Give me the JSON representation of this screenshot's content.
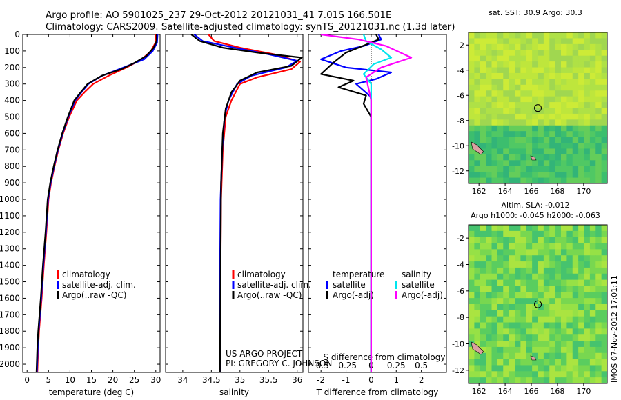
{
  "header": {
    "line1": "Argo profile: AO 5901025_237 29-Oct-2012 20121031_41 7.01S 166.501E",
    "line2": "Climatology: CARS2009. Satellite-adjusted climatology: synTS_20121031.nc (1.3d later)"
  },
  "credits": {
    "line1": "US ARGO PROJECT",
    "line2": "PI: GREGORY C. JOHNSON"
  },
  "side_label": "IMOS 07-Nov-2012 17:01:11",
  "colors": {
    "climatology": "#ff0000",
    "satellite": "#0000ff",
    "argo": "#000000",
    "sat_salinity": "#00e5ee",
    "argo_salinity": "#ff00ff"
  },
  "depth_ticks": [
    "0",
    "100",
    "200",
    "300",
    "400",
    "500",
    "600",
    "700",
    "800",
    "900",
    "1000",
    "1100",
    "1200",
    "1300",
    "1400",
    "1500",
    "1600",
    "1700",
    "1800",
    "1900",
    "2000"
  ],
  "legend_profiles": [
    "climatology",
    "satellite-adj. clim.",
    "Argo(..raw -QC)"
  ],
  "legend_diff": {
    "temperature_head": "temperature",
    "salinity_head": "salinity",
    "temperature_items": [
      "satellite",
      "Argo(-adj)"
    ],
    "salinity_items": [
      "satellite",
      "Argo(-adj)"
    ]
  },
  "chart_data": [
    {
      "type": "line",
      "xlabel": "temperature (deg C)",
      "ylabel": "",
      "xlim": [
        -1,
        31
      ],
      "ylim": [
        2050,
        0
      ],
      "x_ticks": [
        "0",
        "5",
        "10",
        "15",
        "20",
        "25",
        "30"
      ],
      "series": [
        {
          "name": "climatology",
          "color": "#ff0000",
          "points": [
            [
              30.0,
              0
            ],
            [
              29.9,
              50
            ],
            [
              28.9,
              100
            ],
            [
              26.7,
              150
            ],
            [
              23.2,
              200
            ],
            [
              19.0,
              250
            ],
            [
              15.4,
              300
            ],
            [
              13.4,
              350
            ],
            [
              11.6,
              400
            ],
            [
              9.8,
              500
            ],
            [
              8.4,
              600
            ],
            [
              7.3,
              700
            ],
            [
              6.4,
              800
            ],
            [
              5.6,
              900
            ],
            [
              5.0,
              1000
            ],
            [
              4.5,
              1200
            ],
            [
              3.9,
              1400
            ],
            [
              3.4,
              1600
            ],
            [
              2.8,
              1800
            ],
            [
              2.6,
              1900
            ],
            [
              2.4,
              2050
            ]
          ]
        },
        {
          "name": "satellite-adj. clim.",
          "color": "#0000ff",
          "points": [
            [
              30.4,
              0
            ],
            [
              30.3,
              50
            ],
            [
              29.3,
              100
            ],
            [
              27.3,
              150
            ],
            [
              22.5,
              200
            ],
            [
              17.5,
              250
            ],
            [
              14.3,
              300
            ],
            [
              12.7,
              350
            ],
            [
              11.2,
              400
            ],
            [
              9.6,
              500
            ],
            [
              8.3,
              600
            ],
            [
              7.2,
              700
            ],
            [
              6.3,
              800
            ],
            [
              5.5,
              900
            ],
            [
              4.9,
              1000
            ],
            [
              4.4,
              1200
            ],
            [
              3.8,
              1400
            ],
            [
              3.3,
              1600
            ],
            [
              2.7,
              1800
            ],
            [
              2.5,
              1900
            ],
            [
              2.3,
              2050
            ]
          ]
        },
        {
          "name": "Argo(..raw -QC)",
          "color": "#000000",
          "points": [
            [
              30.2,
              0
            ],
            [
              30.2,
              40
            ],
            [
              29.5,
              80
            ],
            [
              27.8,
              130
            ],
            [
              25.2,
              170
            ],
            [
              22.0,
              210
            ],
            [
              17.4,
              250
            ],
            [
              14.1,
              300
            ],
            [
              12.5,
              350
            ],
            [
              11.0,
              400
            ],
            [
              9.5,
              500
            ],
            [
              8.2,
              600
            ],
            [
              7.1,
              700
            ],
            [
              6.2,
              800
            ],
            [
              5.4,
              900
            ],
            [
              4.8,
              1000
            ],
            [
              4.3,
              1200
            ],
            [
              3.7,
              1400
            ],
            [
              3.2,
              1600
            ],
            [
              2.6,
              1800
            ],
            [
              2.4,
              1900
            ],
            [
              2.2,
              2050
            ]
          ]
        }
      ]
    },
    {
      "type": "line",
      "xlabel": "salinity",
      "ylabel": "",
      "xlim": [
        33.7,
        36.1
      ],
      "ylim": [
        2050,
        0
      ],
      "x_ticks": [
        "34",
        "34.5",
        "35",
        "35.5",
        "36"
      ],
      "series": [
        {
          "name": "climatology",
          "color": "#ff0000",
          "points": [
            [
              34.45,
              0
            ],
            [
              34.55,
              40
            ],
            [
              35.0,
              80
            ],
            [
              35.6,
              120
            ],
            [
              36.05,
              165
            ],
            [
              35.9,
              210
            ],
            [
              35.3,
              260
            ],
            [
              35.0,
              300
            ],
            [
              34.85,
              400
            ],
            [
              34.75,
              500
            ],
            [
              34.7,
              700
            ],
            [
              34.67,
              1000
            ],
            [
              34.66,
              1500
            ],
            [
              34.66,
              2050
            ]
          ]
        },
        {
          "name": "satellite-adj. clim.",
          "color": "#0000ff",
          "points": [
            [
              34.2,
              0
            ],
            [
              34.35,
              40
            ],
            [
              34.9,
              80
            ],
            [
              35.5,
              120
            ],
            [
              36.0,
              160
            ],
            [
              35.8,
              200
            ],
            [
              35.2,
              250
            ],
            [
              34.95,
              300
            ],
            [
              34.8,
              400
            ],
            [
              34.73,
              500
            ],
            [
              34.69,
              700
            ],
            [
              34.66,
              1000
            ],
            [
              34.65,
              1500
            ],
            [
              34.65,
              2050
            ]
          ]
        },
        {
          "name": "Argo(..raw -QC)",
          "color": "#000000",
          "points": [
            [
              34.15,
              0
            ],
            [
              34.3,
              40
            ],
            [
              34.7,
              80
            ],
            [
              35.3,
              110
            ],
            [
              36.08,
              140
            ],
            [
              35.9,
              190
            ],
            [
              35.3,
              230
            ],
            [
              35.0,
              280
            ],
            [
              34.85,
              350
            ],
            [
              34.75,
              450
            ],
            [
              34.7,
              600
            ],
            [
              34.67,
              900
            ],
            [
              34.66,
              1500
            ],
            [
              34.65,
              2050
            ]
          ]
        }
      ]
    },
    {
      "type": "line",
      "xlabel": "T difference from climatology",
      "x2label": "S difference from climatology",
      "ylabel": "",
      "xlim": [
        -2.5,
        3.0
      ],
      "ylim": [
        2050,
        0
      ],
      "x_ticks": [
        "-2",
        "-1",
        "0",
        "1",
        "2"
      ],
      "x2_ticks": [
        "-0.5",
        "-0.25",
        "0",
        "0.25",
        "0.5"
      ],
      "series": [
        {
          "name": "temperature satellite",
          "color": "#0000ff",
          "points": [
            [
              0.3,
              0
            ],
            [
              0.4,
              30
            ],
            [
              -0.3,
              70
            ],
            [
              -1.2,
              100
            ],
            [
              -2.0,
              150
            ],
            [
              -1.0,
              200
            ],
            [
              0.8,
              230
            ],
            [
              0.2,
              270
            ],
            [
              -0.6,
              300
            ],
            [
              0.0,
              380
            ],
            [
              0.0,
              600
            ],
            [
              0.0,
              1000
            ],
            [
              0.0,
              2050
            ]
          ]
        },
        {
          "name": "temperature Argo(-adj)",
          "color": "#000000",
          "points": [
            [
              0.2,
              0
            ],
            [
              0.3,
              30
            ],
            [
              -0.5,
              80
            ],
            [
              -1.0,
              110
            ],
            [
              -1.5,
              170
            ],
            [
              -2.0,
              240
            ],
            [
              -0.7,
              280
            ],
            [
              -1.3,
              320
            ],
            [
              -0.2,
              370
            ],
            [
              -0.3,
              420
            ],
            [
              0.0,
              500
            ],
            [
              0.0,
              1000
            ],
            [
              0.0,
              2050
            ]
          ]
        },
        {
          "name": "salinity satellite",
          "color": "#00e5ee",
          "points": [
            [
              -0.3,
              0
            ],
            [
              -0.2,
              40
            ],
            [
              0.4,
              90
            ],
            [
              0.8,
              140
            ],
            [
              0.1,
              180
            ],
            [
              -0.3,
              240
            ],
            [
              0.0,
              300
            ],
            [
              0.0,
              600
            ],
            [
              0.0,
              2050
            ]
          ]
        },
        {
          "name": "salinity Argo(-adj)",
          "color": "#ff00ff",
          "points": [
            [
              -2.0,
              0
            ],
            [
              -0.5,
              30
            ],
            [
              0.6,
              70
            ],
            [
              1.6,
              140
            ],
            [
              0.4,
              200
            ],
            [
              -0.2,
              260
            ],
            [
              0.0,
              400
            ],
            [
              0.0,
              2050
            ]
          ]
        }
      ]
    }
  ],
  "maps": [
    {
      "title": "sat. SST: 30.9 Argo: 30.3",
      "x_ticks": [
        "162",
        "164",
        "166",
        "168",
        "170"
      ],
      "y_ticks": [
        "-2",
        "-4",
        "-6",
        "-8",
        "-10",
        "-12"
      ]
    },
    {
      "title": "Altim. SLA: -0.012",
      "subtitle": "Argo h1000: -0.045 h2000: -0.063",
      "x_ticks": [
        "162",
        "164",
        "166",
        "168",
        "170"
      ],
      "y_ticks": [
        "-2",
        "-4",
        "-6",
        "-8",
        "-10",
        "-12"
      ]
    }
  ]
}
